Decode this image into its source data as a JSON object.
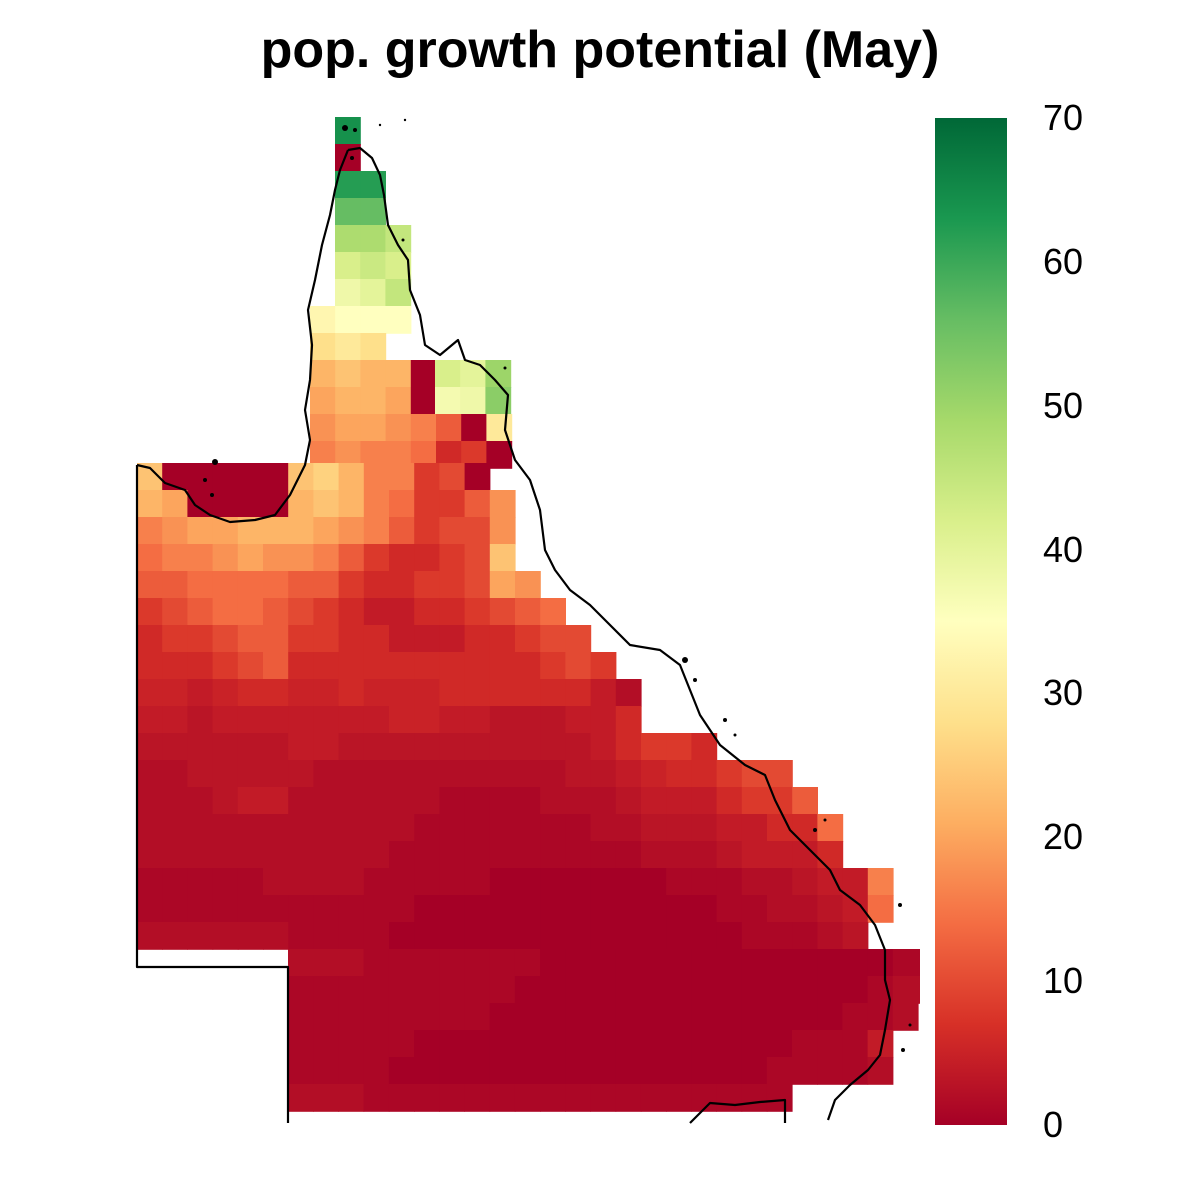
{
  "title": "pop. growth potential (May)",
  "legend": {
    "min": 0,
    "max": 70,
    "ticks": [
      0,
      10,
      20,
      30,
      40,
      50,
      60,
      70
    ],
    "tick_labels": [
      "0",
      "10",
      "20",
      "30",
      "40",
      "50",
      "60",
      "70"
    ],
    "colors": [
      "#a50026",
      "#d73027",
      "#f46d43",
      "#fdae61",
      "#fee08b",
      "#ffffbf",
      "#d9ef8b",
      "#a6d96a",
      "#66bd63",
      "#1a9850",
      "#006837"
    ]
  },
  "chart_data": {
    "type": "heatmap",
    "title": "pop. growth potential (May)",
    "value_range": [
      0,
      70
    ],
    "colorscale": "RdYlGn",
    "row_values": [
      [
        64
      ],
      [
        0
      ],
      [
        62,
        62
      ],
      [
        56,
        56
      ],
      [
        48,
        48,
        45
      ],
      [
        42,
        44,
        42
      ],
      [
        38,
        40,
        45
      ],
      [
        33,
        35,
        35,
        35
      ],
      [
        28,
        30,
        28
      ],
      [
        22,
        24,
        22,
        22,
        0,
        42,
        40,
        50
      ],
      [
        20,
        22,
        22,
        20,
        0,
        37,
        38,
        52
      ],
      [
        18,
        20,
        20,
        18,
        16,
        12,
        0,
        30
      ],
      [
        16,
        18,
        16,
        16,
        14,
        6,
        8,
        0
      ],
      [
        24,
        0,
        0,
        0,
        0,
        0,
        24,
        26,
        22,
        16,
        16,
        8,
        10,
        0
      ],
      [
        22,
        20,
        0,
        0,
        0,
        0,
        22,
        24,
        22,
        16,
        14,
        8,
        8,
        12,
        18
      ],
      [
        16,
        18,
        20,
        20,
        22,
        22,
        22,
        20,
        18,
        16,
        12,
        8,
        10,
        10,
        18
      ],
      [
        14,
        16,
        16,
        18,
        20,
        18,
        18,
        16,
        12,
        8,
        6,
        6,
        8,
        10,
        24
      ],
      [
        12,
        12,
        14,
        14,
        14,
        14,
        12,
        12,
        8,
        6,
        6,
        8,
        8,
        10,
        20,
        18
      ],
      [
        8,
        10,
        12,
        14,
        14,
        12,
        10,
        8,
        6,
        4,
        4,
        6,
        6,
        8,
        10,
        12,
        14
      ],
      [
        6,
        8,
        8,
        10,
        12,
        12,
        8,
        8,
        6,
        6,
        4,
        4,
        4,
        6,
        6,
        8,
        10,
        10
      ],
      [
        6,
        6,
        6,
        8,
        10,
        12,
        6,
        6,
        6,
        6,
        6,
        6,
        6,
        6,
        6,
        6,
        8,
        10,
        8
      ],
      [
        5,
        5,
        4,
        5,
        6,
        6,
        5,
        5,
        6,
        5,
        5,
        5,
        6,
        6,
        6,
        6,
        6,
        6,
        4,
        2
      ],
      [
        4,
        4,
        3,
        4,
        4,
        4,
        4,
        4,
        4,
        4,
        5,
        5,
        4,
        4,
        3,
        3,
        3,
        4,
        4,
        6
      ],
      [
        3,
        3,
        3,
        3,
        3,
        3,
        4,
        4,
        3,
        3,
        3,
        3,
        3,
        3,
        3,
        3,
        3,
        3,
        4,
        6,
        8,
        8,
        6
      ],
      [
        2,
        2,
        3,
        3,
        3,
        3,
        3,
        2,
        2,
        2,
        2,
        2,
        2,
        2,
        2,
        2,
        2,
        3,
        3,
        4,
        5,
        6,
        6,
        8,
        10,
        10
      ],
      [
        2,
        2,
        2,
        3,
        4,
        4,
        2,
        2,
        2,
        2,
        2,
        2,
        1,
        1,
        1,
        1,
        2,
        2,
        2,
        3,
        4,
        4,
        4,
        6,
        8,
        8,
        12
      ],
      [
        2,
        2,
        2,
        2,
        2,
        2,
        2,
        2,
        2,
        2,
        2,
        1,
        1,
        1,
        1,
        1,
        1,
        1,
        2,
        2,
        3,
        3,
        3,
        4,
        4,
        6,
        6,
        14
      ],
      [
        2,
        2,
        2,
        2,
        2,
        2,
        2,
        2,
        2,
        2,
        1,
        1,
        1,
        1,
        1,
        1,
        1,
        1,
        1,
        1,
        2,
        2,
        2,
        3,
        4,
        4,
        4,
        6
      ],
      [
        1,
        1,
        1,
        1,
        1,
        2,
        2,
        2,
        2,
        1,
        1,
        1,
        1,
        1,
        0,
        0,
        0,
        0,
        0,
        0,
        0,
        1,
        1,
        1,
        2,
        2,
        3,
        4,
        4,
        16
      ],
      [
        1,
        1,
        1,
        1,
        1,
        1,
        1,
        1,
        1,
        1,
        1,
        0,
        0,
        0,
        0,
        0,
        0,
        0,
        0,
        0,
        0,
        0,
        0,
        1,
        1,
        2,
        2,
        3,
        4,
        14
      ],
      [
        2,
        2,
        2,
        2,
        2,
        2,
        1,
        1,
        1,
        1,
        0,
        0,
        0,
        0,
        0,
        0,
        0,
        0,
        0,
        0,
        0,
        0,
        0,
        0,
        1,
        1,
        1,
        2,
        3
      ],
      [
        2,
        2,
        2,
        1,
        1,
        1,
        1,
        1,
        1,
        1,
        0,
        0,
        0,
        0,
        0,
        0,
        0,
        0,
        0,
        0,
        0,
        0,
        0,
        0,
        1,
        1,
        2
      ],
      [
        1,
        1,
        1,
        1,
        1,
        1,
        1,
        1,
        1,
        0,
        0,
        0,
        0,
        0,
        0,
        0,
        0,
        0,
        0,
        0,
        0,
        0,
        0,
        1,
        2,
        2
      ],
      [
        1,
        1,
        1,
        1,
        1,
        1,
        1,
        1,
        0,
        0,
        0,
        0,
        0,
        0,
        0,
        0,
        0,
        0,
        0,
        0,
        0,
        0,
        1,
        1,
        2
      ],
      [
        1,
        1,
        1,
        1,
        1,
        0,
        0,
        0,
        0,
        0,
        0,
        0,
        0,
        0,
        0,
        0,
        0,
        0,
        0,
        0,
        1,
        1,
        1,
        4
      ],
      [
        1,
        1,
        1,
        1,
        0,
        0,
        0,
        0,
        0,
        0,
        0,
        0,
        0,
        0,
        0,
        0,
        0,
        0,
        0,
        1,
        1,
        1,
        1,
        2
      ],
      [
        2,
        2,
        2,
        1,
        1,
        1,
        1,
        1,
        1,
        1,
        1,
        1,
        1,
        1,
        1,
        1,
        1,
        1,
        1,
        1
      ]
    ],
    "coastline": true
  }
}
